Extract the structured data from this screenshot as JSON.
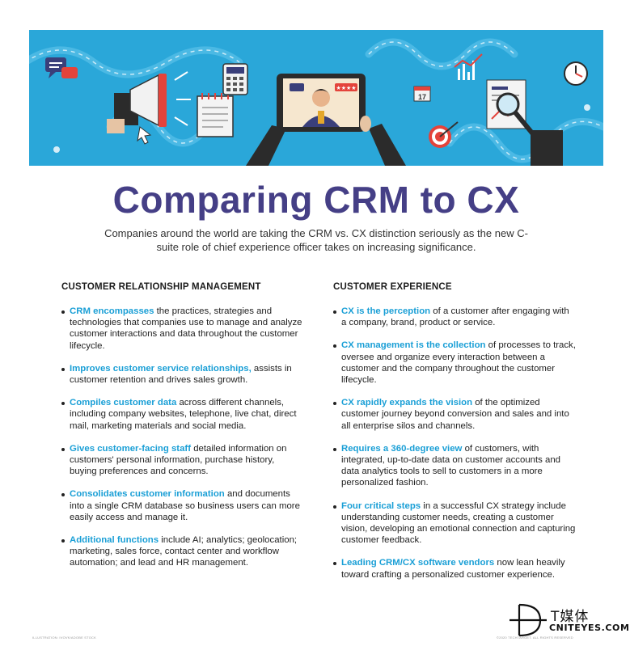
{
  "colors": {
    "banner": "#2aa7d9",
    "title": "#453f86",
    "accent": "#1a9fd6",
    "body_text": "#222222"
  },
  "banner": {
    "icons": [
      "chat-bubble-icon",
      "megaphone-icon",
      "cursor-icon",
      "notebook-icon",
      "calculator-icon",
      "tablet-icon",
      "person-icon",
      "star-rating-icon",
      "calendar-icon",
      "bar-chart-icon",
      "target-icon",
      "magnifier-icon",
      "clock-icon",
      "report-icon"
    ],
    "calendar_day": "17"
  },
  "title": "Comparing CRM to CX",
  "subtitle": "Companies around the world are taking the CRM vs. CX distinction seriously as the new C-suite role of chief experience officer takes on increasing significance.",
  "left": {
    "heading": "CUSTOMER RELATIONSHIP MANAGEMENT",
    "items": [
      {
        "lead": "CRM encompasses",
        "text": " the practices, strategies and technologies that companies use to manage and analyze customer interactions and data throughout the customer lifecycle."
      },
      {
        "lead": "Improves customer service relationships,",
        "text": " assists in customer retention and drives sales growth."
      },
      {
        "lead": "Compiles customer data",
        "text": " across different channels, including company websites, telephone, live chat, direct mail, marketing materials and social media."
      },
      {
        "lead": "Gives customer-facing staff",
        "text": " detailed information on customers' personal information, purchase history, buying preferences and concerns."
      },
      {
        "lead": "Consolidates customer information",
        "text": " and documents into a single CRM database so business users can more easily access and manage it."
      },
      {
        "lead": "Additional functions",
        "text": " include AI; analytics; geolocation; marketing, sales force, contact center and workflow automation; and lead and HR management."
      }
    ]
  },
  "right": {
    "heading": "CUSTOMER EXPERIENCE",
    "items": [
      {
        "lead": "CX is the perception",
        "text": " of a customer after engaging with a company, brand, product or service."
      },
      {
        "lead": "CX management is the collection",
        "text": " of processes to track, oversee and organize every interaction between a customer and the company throughout the customer lifecycle."
      },
      {
        "lead": "CX rapidly expands the vision",
        "text": " of the optimized customer journey beyond conversion and sales and into all enterprise silos and channels."
      },
      {
        "lead": "Requires a 360-degree view",
        "text": " of customers, with integrated, up-to-date data on customer accounts and data analytics tools to sell to customers in a more personalized fashion."
      },
      {
        "lead": "Four critical steps",
        "text": " in a successful CX strategy include understanding customer needs, creating a customer vision, developing an emotional connection and capturing customer feedback."
      },
      {
        "lead": "Leading CRM/CX software vendors",
        "text": " now lean heavily toward crafting a personalized customer experience."
      }
    ]
  },
  "credits": {
    "left": "ILLUSTRATION: IVOVK/ADOBE STOCK",
    "right": "©2020 TECHTARGET. ALL RIGHTS RESERVED"
  },
  "watermark": {
    "cn": "T媒体",
    "en": "CNITEYES.COM"
  }
}
